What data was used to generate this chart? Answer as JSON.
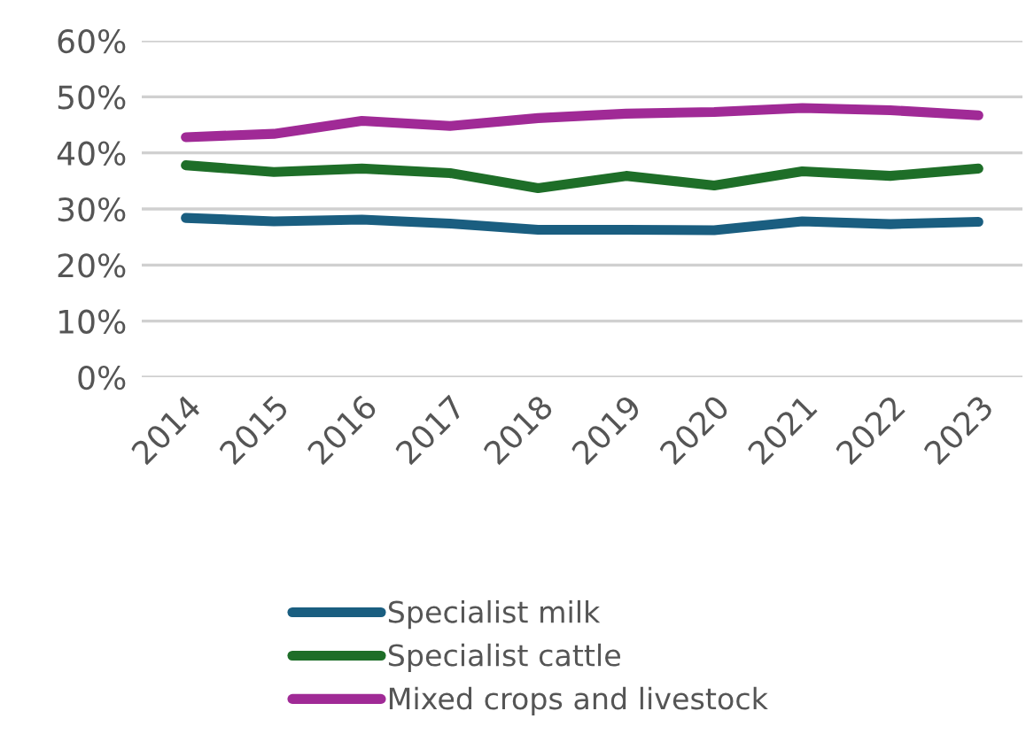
{
  "chart_data": {
    "type": "line",
    "categories": [
      "2014",
      "2015",
      "2016",
      "2017",
      "2018",
      "2019",
      "2020",
      "2021",
      "2022",
      "2023"
    ],
    "series": [
      {
        "name": "Specialist milk",
        "color": "#1a5e80",
        "values": [
          28.4,
          27.8,
          28.1,
          27.4,
          26.3,
          26.3,
          26.2,
          27.8,
          27.3,
          27.7
        ]
      },
      {
        "name": "Specialist cattle",
        "color": "#1e6e28",
        "values": [
          37.8,
          36.6,
          37.2,
          36.4,
          33.7,
          35.9,
          34.2,
          36.7,
          35.9,
          37.2
        ]
      },
      {
        "name": "Mixed crops and livestock",
        "color": "#a02a96",
        "values": [
          42.8,
          43.4,
          45.7,
          44.8,
          46.2,
          47.0,
          47.3,
          48.0,
          47.6,
          46.7
        ]
      }
    ],
    "ylim": [
      0,
      60
    ],
    "yticks": [
      {
        "value": 0,
        "label": "0%"
      },
      {
        "value": 10,
        "label": "10%"
      },
      {
        "value": 20,
        "label": "20%"
      },
      {
        "value": 30,
        "label": "30%"
      },
      {
        "value": 40,
        "label": "40%"
      },
      {
        "value": 50,
        "label": "50%"
      },
      {
        "value": 60,
        "label": "60%"
      }
    ],
    "grid": "y",
    "legend": "bottom",
    "marker": "none",
    "line_style": "solid"
  }
}
